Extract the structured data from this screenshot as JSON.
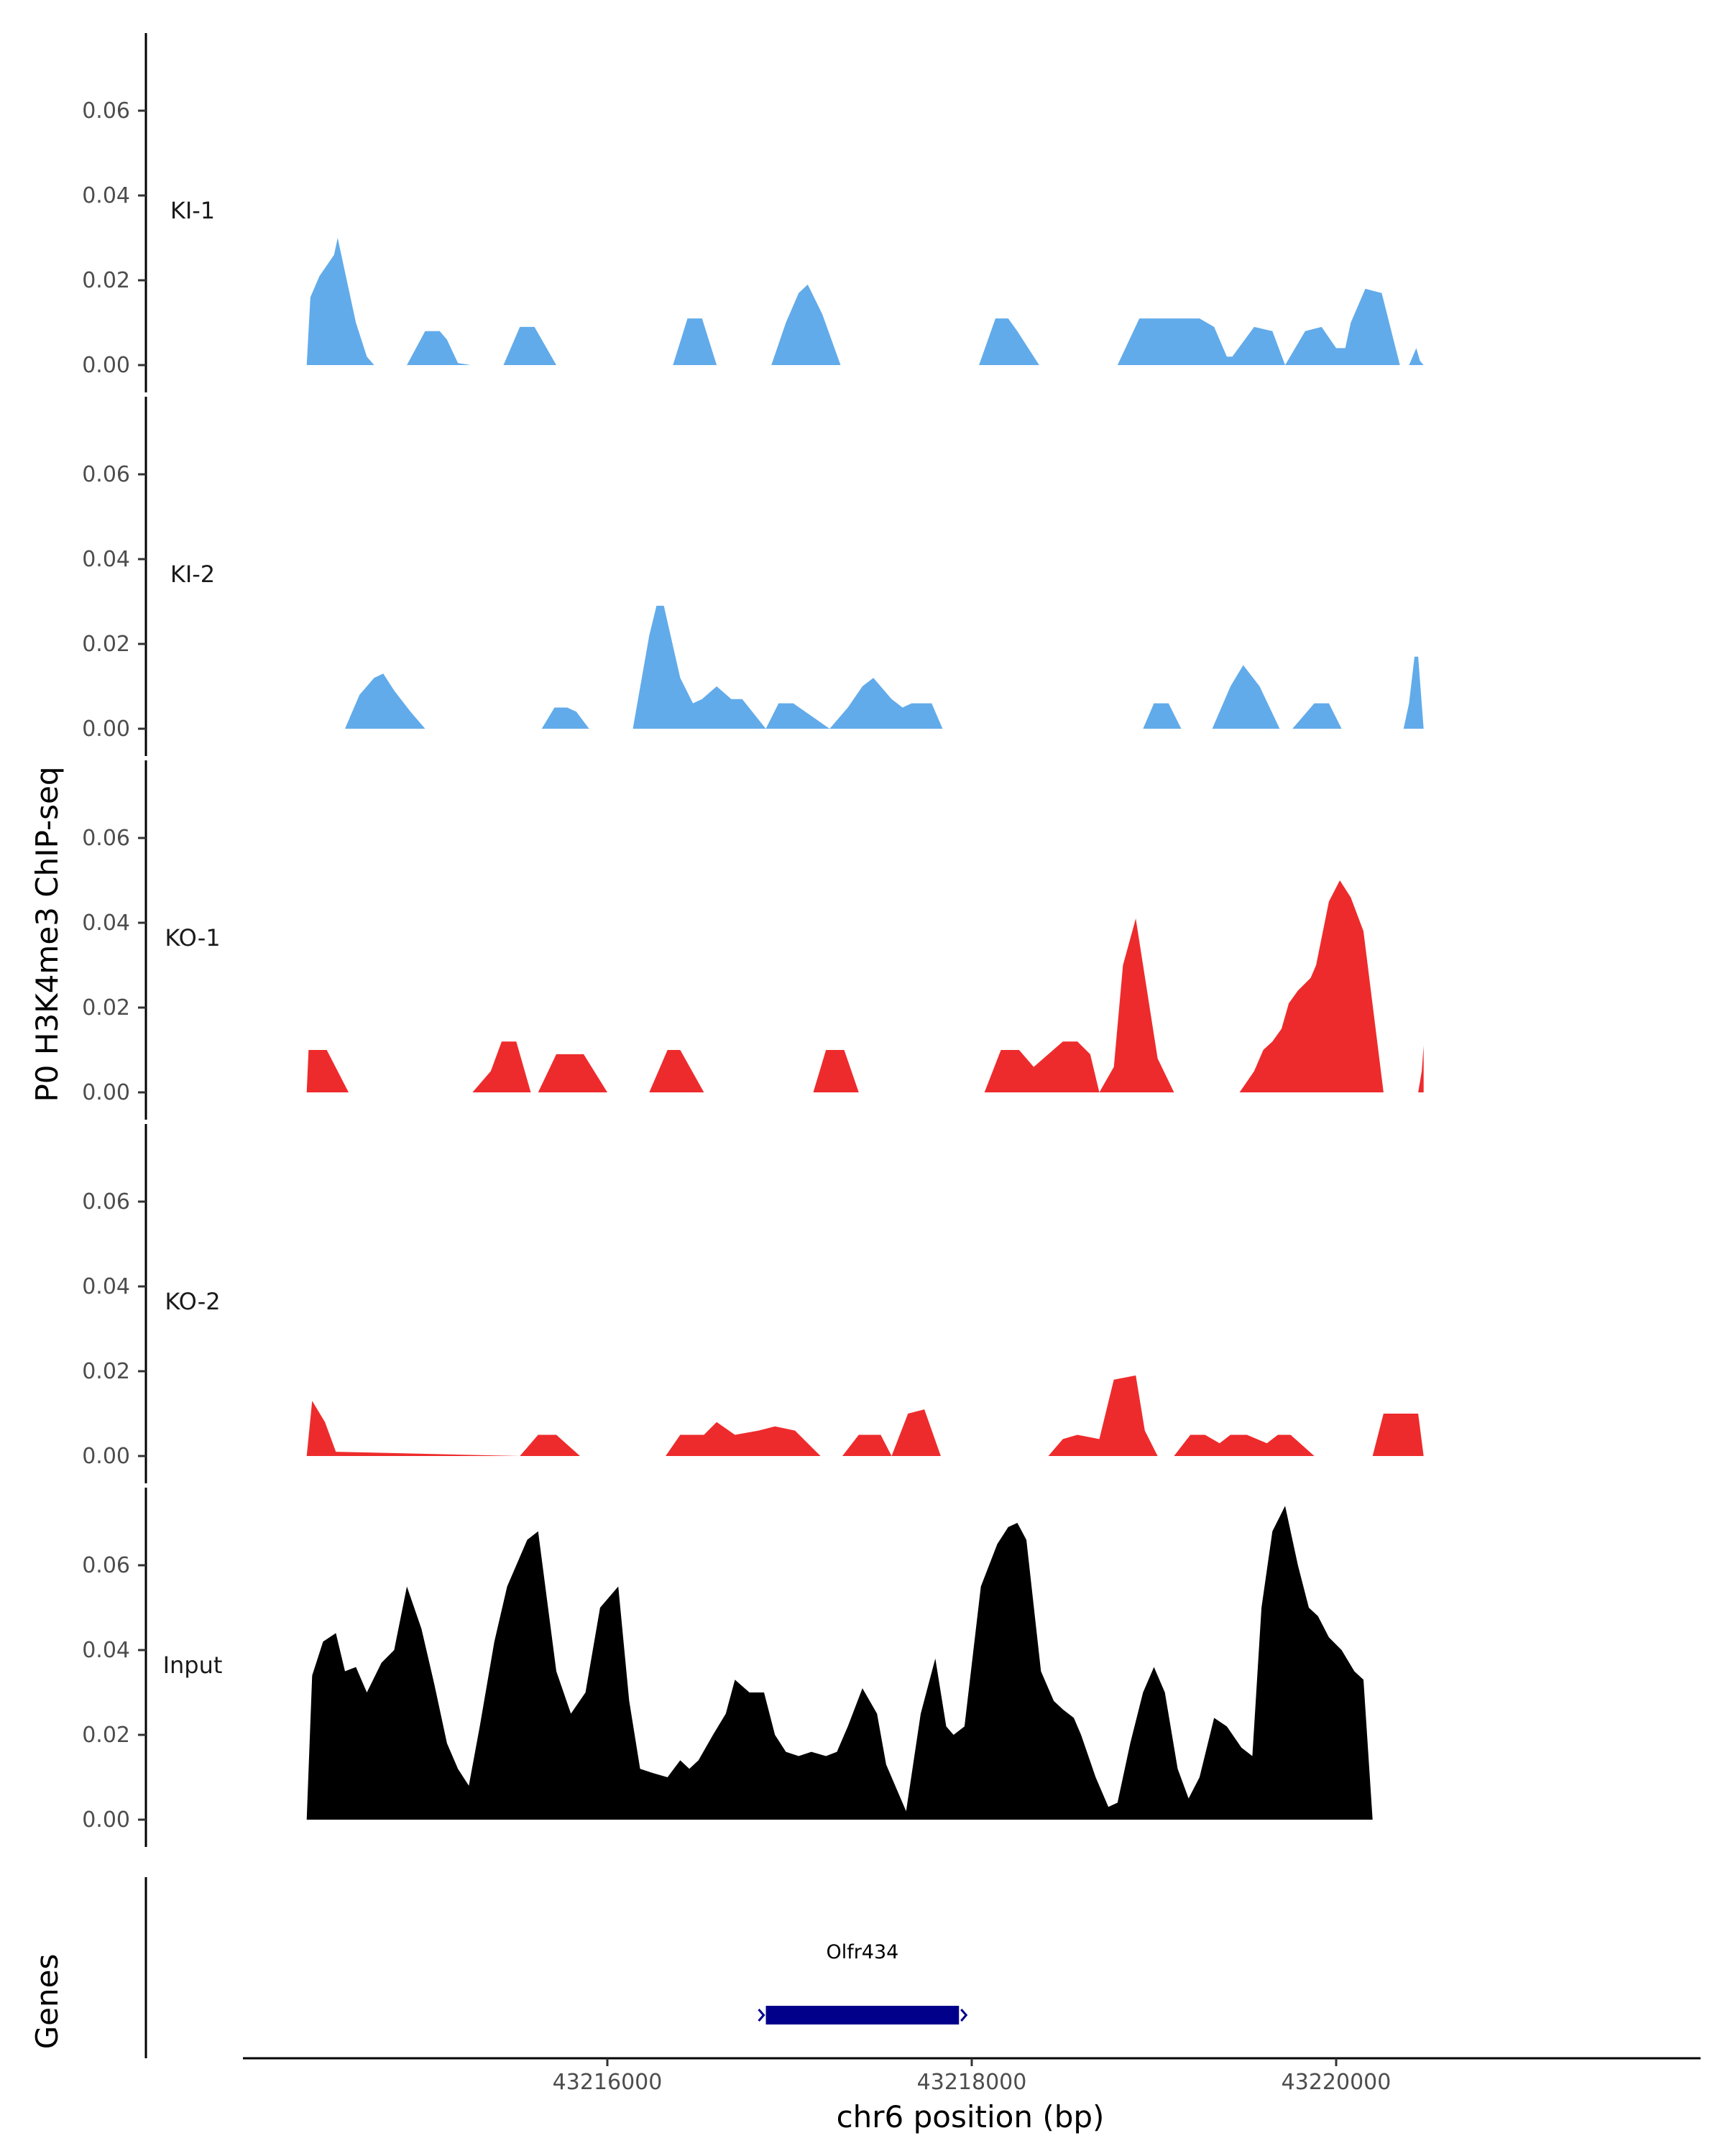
{
  "chart_data": {
    "type": "area",
    "ylabel": "P0 H3K4me3 ChIP-seq",
    "xlabel": "chr6 position (bp)",
    "genes_label": "Genes",
    "ylim": [
      0,
      0.078
    ],
    "yticks": [
      0.0,
      0.02,
      0.04,
      0.06
    ],
    "ytick_labels": [
      "0.00",
      "0.02",
      "0.04",
      "0.06"
    ],
    "xlim": [
      43214000,
      43222000
    ],
    "xticks": [
      43216000,
      43218000,
      43220000
    ],
    "xtick_labels": [
      "43216000",
      "43218000",
      "43220000"
    ],
    "colors": {
      "KI": "#62abea",
      "KO": "#ee2b2c",
      "Input": "#000000",
      "gene": "#00008b"
    },
    "tracks": [
      {
        "label": "KI-1",
        "color": "#62abea",
        "x": [
          43214350,
          43214370,
          43214420,
          43214500,
          43214520,
          43214620,
          43214680,
          43214720,
          43214900,
          43215000,
          43215080,
          43215120,
          43215180,
          43215250,
          43215430,
          43215520,
          43215600,
          43215720,
          43216360,
          43216440,
          43216520,
          43216600,
          43216660,
          43216900,
          43216980,
          43217050,
          43217100,
          43217180,
          43217280,
          43218040,
          43218130,
          43218200,
          43218250,
          43218370,
          43218800,
          43218920,
          43219000,
          43219250,
          43219330,
          43219400,
          43219430,
          43219550,
          43219650,
          43219720,
          43219830,
          43219920,
          43220000,
          43220050,
          43220080,
          43220160,
          43220250,
          43220350,
          43220400,
          43220440,
          43220460,
          43220480
        ],
        "y": [
          0.0,
          0.016,
          0.021,
          0.026,
          0.03,
          0.01,
          0.002,
          0.0,
          0.0,
          0.008,
          0.008,
          0.006,
          0.0005,
          0.0,
          0.0,
          0.009,
          0.009,
          0.0,
          0.0,
          0.011,
          0.011,
          0.0,
          0.0,
          0.0,
          0.01,
          0.017,
          0.019,
          0.012,
          0.0,
          0.0,
          0.011,
          0.011,
          0.008,
          0.0,
          0.0,
          0.011,
          0.011,
          0.011,
          0.009,
          0.002,
          0.002,
          0.009,
          0.008,
          0.0,
          0.008,
          0.009,
          0.004,
          0.004,
          0.01,
          0.018,
          0.017,
          0.0,
          0.0,
          0.004,
          0.001,
          0.0
        ]
      },
      {
        "label": "KI-2",
        "color": "#62abea",
        "x": [
          43214560,
          43214640,
          43214720,
          43214770,
          43214830,
          43214920,
          43215000,
          43215640,
          43215710,
          43215780,
          43215830,
          43215900,
          43216140,
          43216230,
          43216270,
          43216310,
          43216400,
          43216470,
          43216520,
          43216600,
          43216680,
          43216740,
          43216870,
          43216940,
          43217020,
          43217220,
          43217320,
          43217400,
          43217460,
          43217560,
          43217620,
          43217670,
          43217780,
          43217840,
          43218940,
          43219000,
          43219080,
          43219150,
          43219320,
          43219420,
          43219490,
          43219580,
          43219690,
          43219760,
          43219880,
          43219960,
          43220030,
          43220370,
          43220400,
          43220430,
          43220450,
          43220480
        ],
        "y": [
          0.0,
          0.008,
          0.012,
          0.013,
          0.009,
          0.004,
          0.0,
          0.0,
          0.005,
          0.005,
          0.004,
          0.0,
          0.0,
          0.022,
          0.029,
          0.029,
          0.012,
          0.006,
          0.007,
          0.01,
          0.007,
          0.007,
          0.0,
          0.006,
          0.006,
          0.0,
          0.005,
          0.01,
          0.012,
          0.007,
          0.005,
          0.006,
          0.006,
          0.0,
          0.0,
          0.006,
          0.006,
          0.0,
          0.0,
          0.01,
          0.015,
          0.01,
          0.0,
          0.0,
          0.006,
          0.006,
          0.0,
          0.0,
          0.006,
          0.017,
          0.017,
          0.0
        ]
      },
      {
        "label": "KO-1",
        "color": "#ee2b2c",
        "x": [
          43214350,
          43214360,
          43214460,
          43214580,
          43215260,
          43215360,
          43215420,
          43215500,
          43215580,
          43215620,
          43215720,
          43215870,
          43216000,
          43216230,
          43216330,
          43216400,
          43216530,
          43217130,
          43217200,
          43217300,
          43217380,
          43218070,
          43218160,
          43218260,
          43218340,
          43218500,
          43218580,
          43218650,
          43218700,
          43218780,
          43218830,
          43218900,
          43219020,
          43219110,
          43219470,
          43219550,
          43219600,
          43219650,
          43219700,
          43219740,
          43219790,
          43219860,
          43219890,
          43219960,
          43220020,
          43220080,
          43220150,
          43220260,
          43220450,
          43220470,
          43220480
        ],
        "y": [
          0.0,
          0.01,
          0.01,
          0.0,
          0.0,
          0.005,
          0.012,
          0.012,
          0.0,
          0.0,
          0.009,
          0.009,
          0.0,
          0.0,
          0.01,
          0.01,
          0.0,
          0.0,
          0.01,
          0.01,
          0.0,
          0.0,
          0.01,
          0.01,
          0.006,
          0.012,
          0.012,
          0.009,
          0.0,
          0.006,
          0.03,
          0.041,
          0.008,
          0.0,
          0.0,
          0.005,
          0.01,
          0.012,
          0.015,
          0.021,
          0.024,
          0.027,
          0.03,
          0.045,
          0.05,
          0.046,
          0.038,
          0.0,
          0.0,
          0.005,
          0.011
        ]
      },
      {
        "label": "KO-2",
        "color": "#ee2b2c",
        "x": [
          43214350,
          43214380,
          43214450,
          43214510,
          43215520,
          43215620,
          43215720,
          43215850,
          43216320,
          43216400,
          43216530,
          43216600,
          43216700,
          43216830,
          43216920,
          43217030,
          43217170,
          43217290,
          43217380,
          43217500,
          43217560,
          43217650,
          43217740,
          43217830,
          43218420,
          43218500,
          43218580,
          43218700,
          43218780,
          43218900,
          43218950,
          43219020,
          43219110,
          43219200,
          43219280,
          43219360,
          43219420,
          43219510,
          43219620,
          43219680,
          43219750,
          43219880,
          43220200,
          43220260,
          43220320,
          43220450,
          43220480
        ],
        "y": [
          0.0,
          0.013,
          0.008,
          0.001,
          0.0,
          0.005,
          0.005,
          0.0,
          0.0,
          0.005,
          0.005,
          0.008,
          0.005,
          0.006,
          0.007,
          0.006,
          0.0,
          0.0,
          0.005,
          0.005,
          0.0,
          0.01,
          0.011,
          0.0,
          0.0,
          0.004,
          0.005,
          0.004,
          0.018,
          0.019,
          0.006,
          0.0,
          0.0,
          0.005,
          0.005,
          0.003,
          0.005,
          0.005,
          0.003,
          0.005,
          0.005,
          0.0,
          0.0,
          0.01,
          0.01,
          0.01,
          0.0
        ]
      },
      {
        "label": "Input",
        "color": "#000000",
        "x": [
          43214350,
          43214380,
          43214440,
          43214510,
          43214560,
          43214620,
          43214680,
          43214760,
          43214830,
          43214900,
          43214980,
          43215050,
          43215120,
          43215180,
          43215240,
          43215300,
          43215380,
          43215450,
          43215500,
          43215560,
          43215620,
          43215720,
          43215800,
          43215880,
          43215960,
          43216060,
          43216120,
          43216180,
          43216250,
          43216330,
          43216400,
          43216450,
          43216500,
          43216580,
          43216650,
          43216700,
          43216780,
          43216860,
          43216920,
          43216980,
          43217050,
          43217120,
          43217200,
          43217260,
          43217320,
          43217400,
          43217480,
          43217530,
          43217580,
          43217640,
          43217720,
          43217800,
          43217860,
          43217900,
          43217960,
          43218050,
          43218140,
          43218200,
          43218250,
          43218300,
          43218380,
          43218450,
          43218500,
          43218560,
          43218600,
          43218680,
          43218750,
          43218800,
          43218870,
          43218940,
          43219000,
          43219060,
          43219130,
          43219190,
          43219250,
          43219330,
          43219400,
          43219480,
          43219540,
          43219590,
          43219650,
          43219720,
          43219790,
          43219850,
          43219900,
          43219960,
          43220030,
          43220100,
          43220150,
          43220200,
          43220260,
          43220310,
          43220360,
          43220420,
          43220450,
          43220480
        ],
        "y": [
          0.0,
          0.034,
          0.042,
          0.044,
          0.035,
          0.036,
          0.03,
          0.037,
          0.04,
          0.055,
          0.045,
          0.032,
          0.018,
          0.012,
          0.008,
          0.022,
          0.042,
          0.055,
          0.06,
          0.066,
          0.068,
          0.035,
          0.025,
          0.03,
          0.05,
          0.055,
          0.028,
          0.012,
          0.011,
          0.01,
          0.014,
          0.012,
          0.014,
          0.02,
          0.025,
          0.033,
          0.03,
          0.03,
          0.02,
          0.016,
          0.015,
          0.016,
          0.015,
          0.016,
          0.022,
          0.031,
          0.025,
          0.013,
          0.008,
          0.002,
          0.025,
          0.038,
          0.022,
          0.02,
          0.022,
          0.055,
          0.065,
          0.069,
          0.07,
          0.066,
          0.035,
          0.028,
          0.026,
          0.024,
          0.02,
          0.01,
          0.003,
          0.004,
          0.018,
          0.03,
          0.036,
          0.03,
          0.012,
          0.005,
          0.01,
          0.024,
          0.022,
          0.017,
          0.015,
          0.05,
          0.068,
          0.074,
          0.06,
          0.05,
          0.048,
          0.043,
          0.04,
          0.035,
          0.033,
          0.0,
          0.0,
          0.0,
          0.0,
          0.0,
          0.0,
          0.0
        ]
      }
    ],
    "genes": [
      {
        "name": "Olfr434",
        "start": 43216870,
        "end": 43217930
      }
    ]
  }
}
